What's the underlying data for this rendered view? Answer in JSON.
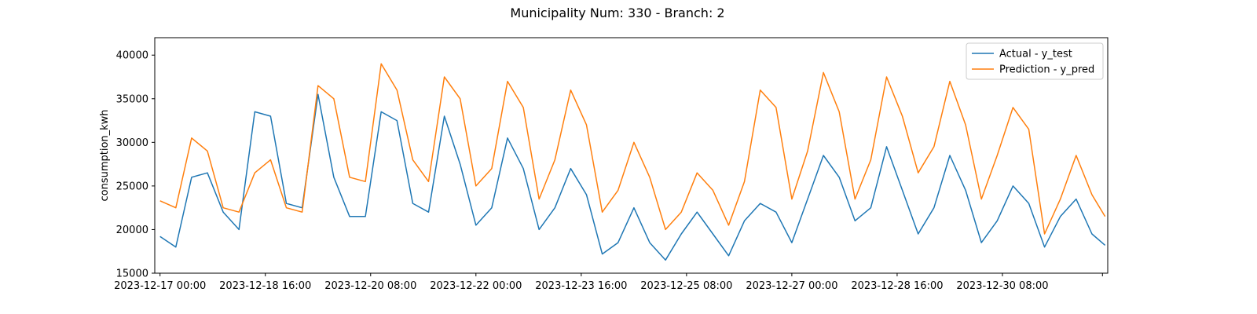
{
  "chart_data": {
    "type": "line",
    "title": "Municipality Num: 330 - Branch: 2",
    "xlabel": "",
    "ylabel": "consumption_kwh",
    "ylim": [
      15000,
      42000
    ],
    "yticks": [
      15000,
      20000,
      25000,
      30000,
      35000,
      40000
    ],
    "xlim": [
      "2023-12-16 22:00",
      "2024-01-01 00:00"
    ],
    "xticks": [
      "2023-12-17 00:00",
      "2023-12-18 16:00",
      "2023-12-20 08:00",
      "2023-12-22 00:00",
      "2023-12-23 16:00",
      "2023-12-25 08:00",
      "2023-12-27 00:00",
      "2023-12-28 16:00",
      "2023-12-30 08:00",
      "2023-12-31 22:00"
    ],
    "xtick_labels": [
      "2023-12-17 00:00",
      "2023-12-18 16:00",
      "2023-12-20 08:00",
      "2023-12-22 00:00",
      "2023-12-23 16:00",
      "2023-12-25 08:00",
      "2023-12-27 00:00",
      "2023-12-28 16:00",
      "2023-12-30 08:00",
      ""
    ],
    "grid": false,
    "legend_position": "top-right",
    "x": [
      "2023-12-17 00:00",
      "2023-12-17 06:00",
      "2023-12-17 12:00",
      "2023-12-17 18:00",
      "2023-12-18 00:00",
      "2023-12-18 06:00",
      "2023-12-18 12:00",
      "2023-12-18 18:00",
      "2023-12-19 00:00",
      "2023-12-19 06:00",
      "2023-12-19 12:00",
      "2023-12-19 18:00",
      "2023-12-20 00:00",
      "2023-12-20 06:00",
      "2023-12-20 12:00",
      "2023-12-20 18:00",
      "2023-12-21 00:00",
      "2023-12-21 06:00",
      "2023-12-21 12:00",
      "2023-12-21 18:00",
      "2023-12-22 00:00",
      "2023-12-22 06:00",
      "2023-12-22 12:00",
      "2023-12-22 18:00",
      "2023-12-23 00:00",
      "2023-12-23 06:00",
      "2023-12-23 12:00",
      "2023-12-23 18:00",
      "2023-12-24 00:00",
      "2023-12-24 06:00",
      "2023-12-24 12:00",
      "2023-12-24 18:00",
      "2023-12-25 00:00",
      "2023-12-25 06:00",
      "2023-12-25 12:00",
      "2023-12-25 18:00",
      "2023-12-26 00:00",
      "2023-12-26 06:00",
      "2023-12-26 12:00",
      "2023-12-26 18:00",
      "2023-12-27 00:00",
      "2023-12-27 06:00",
      "2023-12-27 12:00",
      "2023-12-27 18:00",
      "2023-12-28 00:00",
      "2023-12-28 06:00",
      "2023-12-28 12:00",
      "2023-12-28 18:00",
      "2023-12-29 00:00",
      "2023-12-29 06:00",
      "2023-12-29 12:00",
      "2023-12-29 18:00",
      "2023-12-30 00:00",
      "2023-12-30 06:00",
      "2023-12-30 12:00",
      "2023-12-30 18:00",
      "2023-12-31 00:00",
      "2023-12-31 06:00",
      "2023-12-31 12:00",
      "2023-12-31 18:00",
      "2023-12-31 23:00"
    ],
    "series": [
      {
        "name": "Actual - y_test",
        "color": "#1f77b4",
        "values": [
          19200,
          18000,
          26000,
          26500,
          22000,
          20000,
          33500,
          33000,
          23000,
          22500,
          35500,
          26000,
          21500,
          21500,
          33500,
          32500,
          23000,
          22000,
          33000,
          27500,
          20500,
          22500,
          30500,
          27000,
          20000,
          22500,
          27000,
          24000,
          17200,
          18500,
          22500,
          18500,
          16500,
          19500,
          22000,
          19500,
          17000,
          21000,
          23000,
          22000,
          18500,
          23500,
          28500,
          26000,
          21000,
          22500,
          29500,
          24500,
          19500,
          22500,
          28500,
          24500,
          18500,
          21000,
          25000,
          23000,
          18000,
          21500,
          23500,
          19500,
          18200
        ]
      },
      {
        "name": "Prediction - y_pred",
        "color": "#ff7f0e",
        "values": [
          23300,
          22500,
          30500,
          29000,
          22500,
          22000,
          26500,
          28000,
          22500,
          22000,
          36500,
          35000,
          26000,
          25500,
          39000,
          36000,
          28000,
          25500,
          37500,
          35000,
          25000,
          27000,
          37000,
          34000,
          23500,
          28000,
          36000,
          32000,
          22000,
          24500,
          30000,
          26000,
          20000,
          22000,
          26500,
          24500,
          20500,
          25500,
          36000,
          34000,
          23500,
          29000,
          38000,
          33500,
          23500,
          28000,
          37500,
          33000,
          26500,
          29500,
          37000,
          32000,
          23500,
          28500,
          34000,
          31500,
          19500,
          23500,
          28500,
          24000,
          21500
        ]
      }
    ]
  }
}
